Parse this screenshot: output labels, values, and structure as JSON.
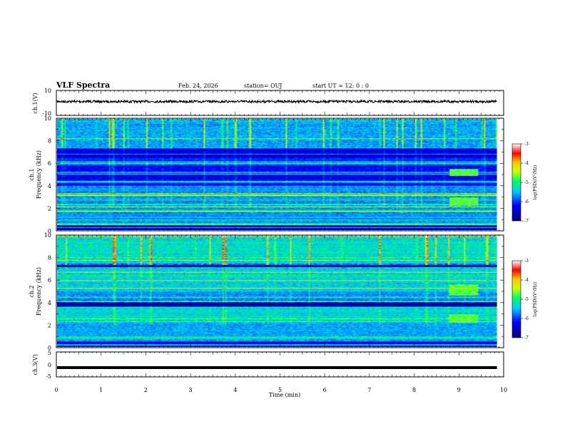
{
  "header": {
    "title": "VLF Spectra",
    "date": "Feb. 24, 2026",
    "station": "station= OUJ",
    "start": "start  UT =   12: 0  : 0"
  },
  "chart_data": [
    {
      "type": "line",
      "panel": "ch1-waveform",
      "ylabel": "ch.1(V)",
      "ylim": [
        -10,
        10
      ],
      "yticks": [
        "10",
        "-10"
      ],
      "xlim": [
        0,
        10
      ],
      "series": [
        {
          "values_mean": 0,
          "amplitude_approx": 1.5
        }
      ]
    },
    {
      "type": "heatmap",
      "panel": "ch1-spectrogram",
      "ylabel": "ch.1\nFrequency (kHz)",
      "ylim": [
        0,
        10
      ],
      "yticks": [
        "0",
        "2",
        "4",
        "6",
        "8",
        "10"
      ],
      "xlim": [
        0,
        9.85
      ],
      "colorbar": {
        "label": "log(PSD)(V²/Hz)",
        "range": [
          -7,
          -3
        ],
        "ticks": [
          "-3",
          "-4",
          "-5",
          "-6",
          "-7"
        ]
      },
      "features": {
        "dark_band_kHz": [
          4.0,
          5.8
        ],
        "bright_lines_kHz": [
          0.5,
          1.7,
          2.3,
          3.2,
          4.3,
          5.2,
          6.0
        ],
        "high_activity_kHz": [
          7.4,
          10
        ],
        "bursts": [
          {
            "t_min": 8.8,
            "t_max": 9.45,
            "f_kHz": [
              4.9,
              5.5
            ]
          },
          {
            "t_min": 8.8,
            "t_max": 9.45,
            "f_kHz": [
              2.2,
              2.9
            ]
          }
        ]
      }
    },
    {
      "type": "heatmap",
      "panel": "ch2-spectrogram",
      "ylabel": "ch.2\nFrequency (kHz)",
      "ylim": [
        0,
        10
      ],
      "yticks": [
        "0",
        "2",
        "4",
        "6",
        "8",
        "10"
      ],
      "xlim": [
        0,
        9.85
      ],
      "colorbar": {
        "label": "log(PSD)(V²/Hz)",
        "range": [
          -7,
          -3
        ],
        "ticks": [
          "-3",
          "-4",
          "-5",
          "-6",
          "-7"
        ]
      },
      "features": {
        "green_bands_kHz": [
          [
            2.2,
            3.6
          ],
          [
            5.0,
            7.2
          ]
        ],
        "high_activity_kHz": [
          7.4,
          10
        ],
        "bursts": [
          {
            "t_min": 8.8,
            "t_max": 9.45,
            "f_kHz": [
              4.6,
              5.6
            ]
          },
          {
            "t_min": 8.8,
            "t_max": 9.45,
            "f_kHz": [
              2.2,
              2.9
            ]
          }
        ]
      }
    },
    {
      "type": "line",
      "panel": "ch3-waveform",
      "ylabel": "ch.3(V)",
      "ylim": [
        -5,
        5
      ],
      "yticks": [
        "5",
        "0",
        "-5"
      ],
      "xlim": [
        0,
        10
      ],
      "series": [
        {
          "values_mean": -1.3
        }
      ]
    }
  ],
  "xaxis": {
    "label": "Time (min)",
    "ticks": [
      "0",
      "1",
      "2",
      "3",
      "4",
      "5",
      "6",
      "7",
      "8",
      "9",
      "10"
    ]
  },
  "colors": {
    "cmap": [
      "#00007f",
      "#0000ff",
      "#00c8ff",
      "#00ff64",
      "#c8ff00",
      "#ffc800",
      "#ff0000",
      "#ffffff"
    ]
  }
}
